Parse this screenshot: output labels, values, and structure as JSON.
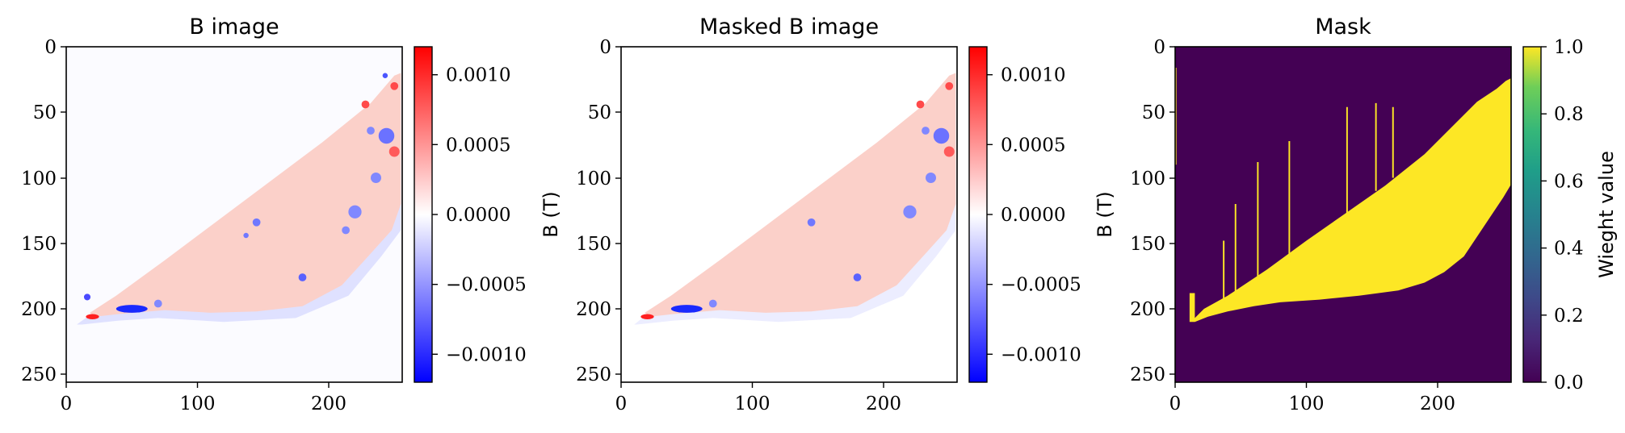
{
  "chart_data": [
    {
      "type": "heatmap",
      "title": "B image",
      "xlim": [
        0,
        256
      ],
      "ylim": [
        256,
        0
      ],
      "x_ticks": [
        "0",
        "100",
        "200"
      ],
      "y_ticks": [
        "0",
        "50",
        "100",
        "150",
        "200",
        "250"
      ],
      "colormap": "bwr",
      "colorbar": {
        "label": "",
        "range": [
          -0.0012,
          0.0012
        ],
        "ticks": [
          "0.0010",
          "0.0005",
          "0.0000",
          "−0.0005",
          "−0.0010"
        ],
        "tick_values": [
          0.001,
          0.0005,
          0.0,
          -0.0005,
          -0.001
        ]
      },
      "colors": {
        "low": "#0000ff",
        "mid": "#ffffff",
        "high": "#ff0000"
      }
    },
    {
      "type": "heatmap",
      "title": "Masked B image",
      "xlim": [
        0,
        256
      ],
      "ylim": [
        256,
        0
      ],
      "x_ticks": [
        "0",
        "100",
        "200"
      ],
      "y_ticks": [
        "0",
        "50",
        "100",
        "150",
        "200",
        "250"
      ],
      "colormap": "bwr",
      "colorbar": {
        "label": "B (T)",
        "range": [
          -0.0012,
          0.0012
        ],
        "ticks": [
          "0.0010",
          "0.0005",
          "0.0000",
          "−0.0005",
          "−0.0010"
        ],
        "tick_values": [
          0.001,
          0.0005,
          0.0,
          -0.0005,
          -0.001
        ]
      },
      "colors": {
        "low": "#0000ff",
        "mid": "#ffffff",
        "high": "#ff0000"
      }
    },
    {
      "type": "heatmap",
      "title": "Mask",
      "xlim": [
        0,
        256
      ],
      "ylim": [
        256,
        0
      ],
      "x_ticks": [
        "0",
        "100",
        "200"
      ],
      "y_ticks": [
        "0",
        "50",
        "100",
        "150",
        "200",
        "250"
      ],
      "colormap": "viridis",
      "colorbar": {
        "label": "Wieght value",
        "range": [
          0.0,
          1.0
        ],
        "ticks": [
          "1.0",
          "0.8",
          "0.6",
          "0.4",
          "0.2",
          "0.0"
        ],
        "tick_values": [
          1.0,
          0.8,
          0.6,
          0.4,
          0.2,
          0.0
        ]
      },
      "colors": {
        "low": "#440154",
        "high": "#fde725"
      }
    }
  ],
  "left_ylabel_middle": "B (T)",
  "left_ylabel_right": "B (T)"
}
